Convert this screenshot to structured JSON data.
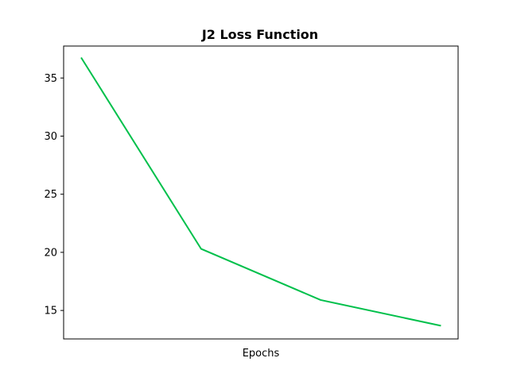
{
  "chart_data": {
    "type": "line",
    "title": "J2 Loss Function",
    "xlabel": "Epochs",
    "ylabel": "",
    "x": [
      0,
      1,
      2,
      3
    ],
    "xlim": [
      -0.15,
      3.15
    ],
    "ylim": [
      12.55,
      37.75
    ],
    "yticks": [
      15,
      20,
      25,
      30,
      35
    ],
    "grid": false,
    "series": [
      {
        "color": "#00c04b",
        "values": [
          36.7,
          20.3,
          15.9,
          13.7
        ]
      }
    ]
  }
}
